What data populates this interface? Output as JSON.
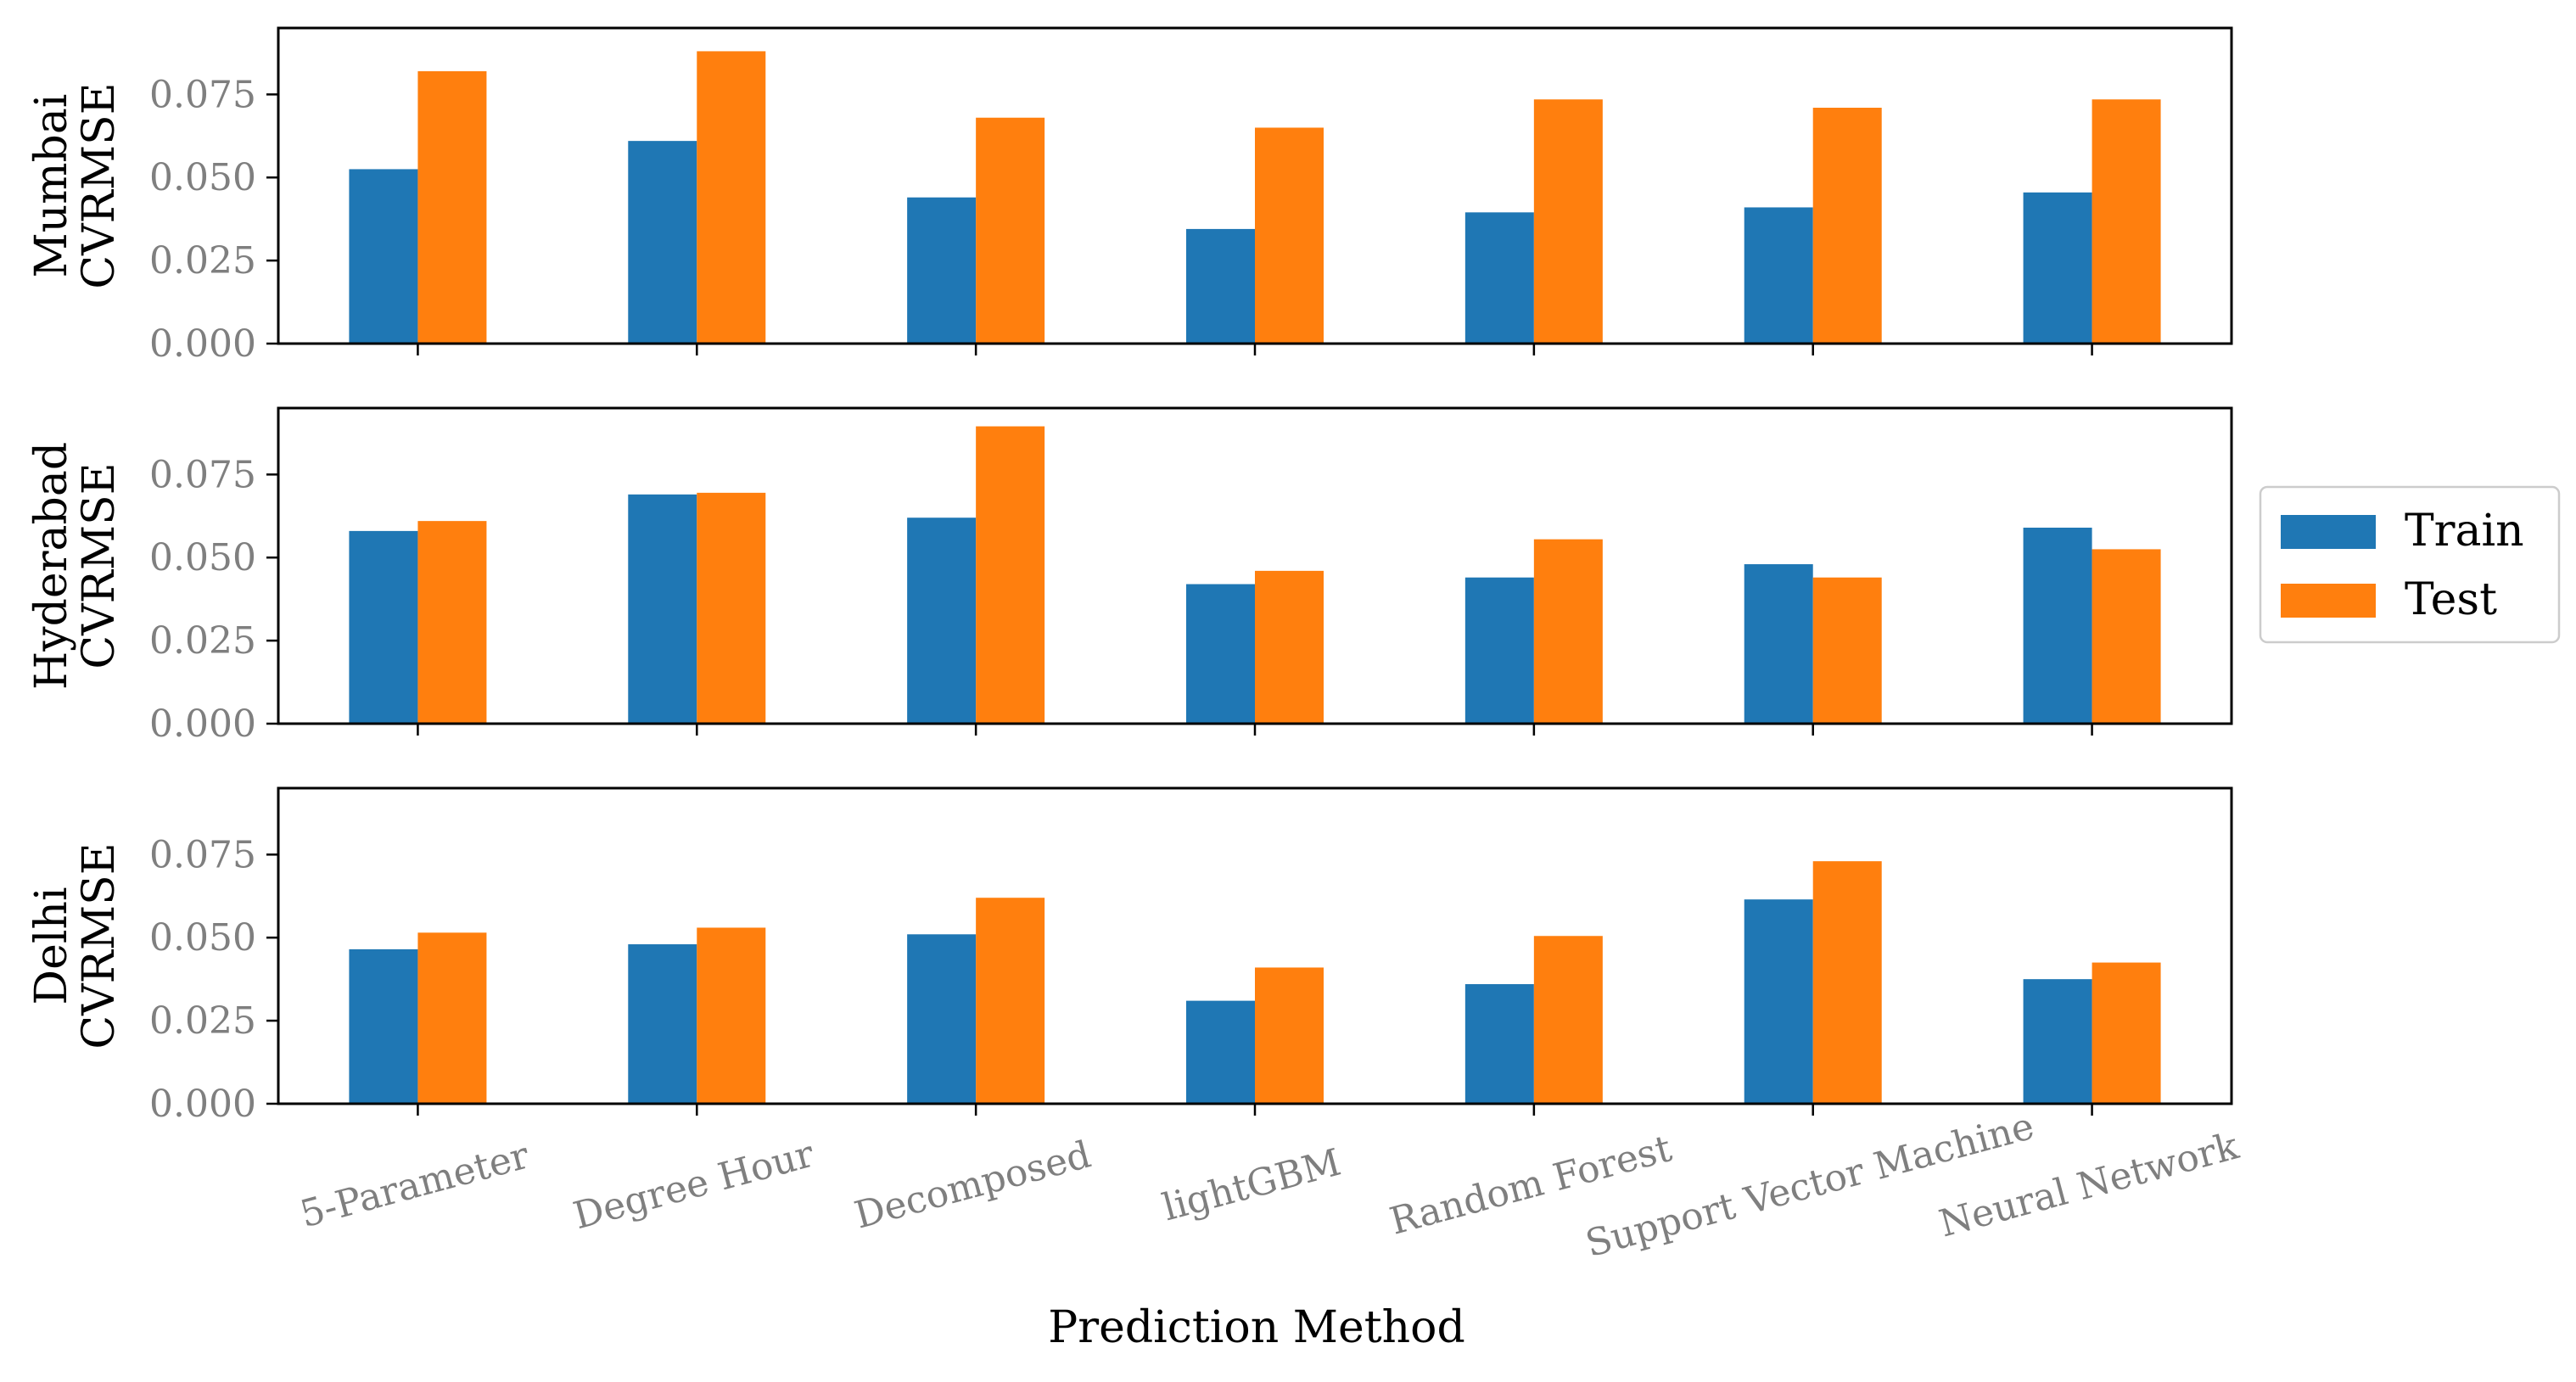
{
  "chart_data": {
    "type": "bar",
    "categories": [
      "5-Parameter",
      "Degree Hour",
      "Decomposed",
      "lightGBM",
      "Random Forest",
      "Support Vector Machine",
      "Neural Network"
    ],
    "xlabel": "Prediction Method",
    "ylim": [
      0,
      0.095
    ],
    "yticks": [
      "0.000",
      "0.025",
      "0.050",
      "0.075"
    ],
    "legend": {
      "placement": "right",
      "entries": [
        "Train",
        "Test"
      ]
    },
    "colors": {
      "Train": "#1f77b4",
      "Test": "#ff7f0e"
    },
    "panels": [
      {
        "ylabel_line1": "Mumbai",
        "ylabel_line2": "CVRMSE",
        "series": [
          {
            "name": "Train",
            "values": [
              0.0525,
              0.061,
              0.044,
              0.0345,
              0.0395,
              0.041,
              0.0455
            ]
          },
          {
            "name": "Test",
            "values": [
              0.082,
              0.088,
              0.068,
              0.065,
              0.0735,
              0.071,
              0.0735
            ]
          }
        ]
      },
      {
        "ylabel_line1": "Hyderabad",
        "ylabel_line2": "CVRMSE",
        "series": [
          {
            "name": "Train",
            "values": [
              0.058,
              0.069,
              0.062,
              0.042,
              0.044,
              0.048,
              0.059
            ]
          },
          {
            "name": "Test",
            "values": [
              0.061,
              0.0695,
              0.0895,
              0.046,
              0.0555,
              0.044,
              0.0525
            ]
          }
        ]
      },
      {
        "ylabel_line1": "Delhi",
        "ylabel_line2": "CVRMSE",
        "series": [
          {
            "name": "Train",
            "values": [
              0.0465,
              0.048,
              0.051,
              0.031,
              0.036,
              0.0615,
              0.0375
            ]
          },
          {
            "name": "Test",
            "values": [
              0.0515,
              0.053,
              0.062,
              0.041,
              0.0505,
              0.073,
              0.0425
            ]
          }
        ]
      }
    ]
  }
}
